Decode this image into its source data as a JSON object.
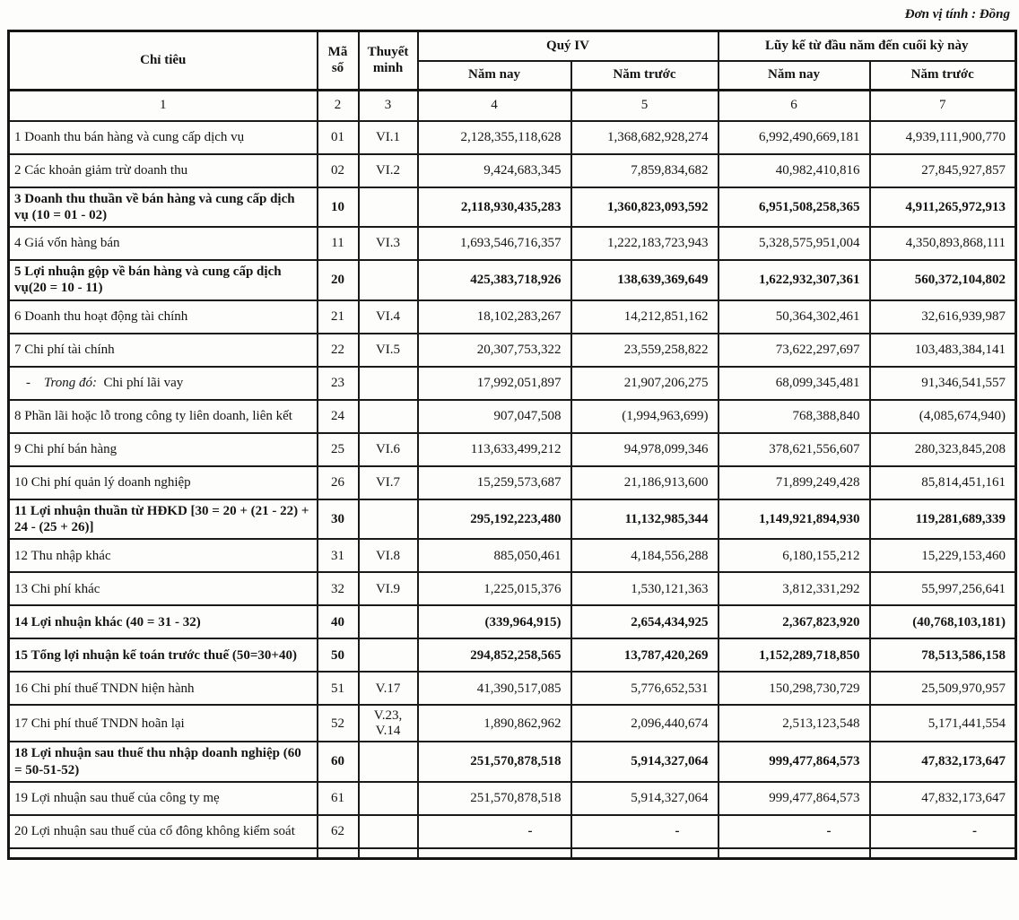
{
  "unit_label": "Đơn vị tính : Đồng",
  "table": {
    "header": {
      "criteria": "Chỉ tiêu",
      "code": "Mã số",
      "note": "Thuyết minh",
      "quarter_group": "Quý IV",
      "cumulative_group": "Lũy kế từ đầu năm đến cuối kỳ này",
      "current_year": "Năm nay",
      "prior_year": "Năm trước",
      "column_numbers": [
        "1",
        "2",
        "3",
        "4",
        "5",
        "6",
        "7"
      ]
    },
    "rows": [
      {
        "label": "1   Doanh thu bán hàng và cung cấp dịch vụ",
        "code": "01",
        "note": "VI.1",
        "q4_now": "2,128,355,118,628",
        "q4_prev": "1,368,682,928,274",
        "cum_now": "6,992,490,669,181",
        "cum_prev": "4,939,111,900,770",
        "bold": false
      },
      {
        "label": "2   Các khoản giảm trừ  doanh thu",
        "code": "02",
        "note": "VI.2",
        "q4_now": "9,424,683,345",
        "q4_prev": "7,859,834,682",
        "cum_now": "40,982,410,816",
        "cum_prev": "27,845,927,857",
        "bold": false
      },
      {
        "label": "3   Doanh thu thuần về bán hàng và cung cấp dịch vụ (10 = 01 - 02)",
        "code": "10",
        "note": "",
        "q4_now": "2,118,930,435,283",
        "q4_prev": "1,360,823,093,592",
        "cum_now": "6,951,508,258,365",
        "cum_prev": "4,911,265,972,913",
        "bold": true
      },
      {
        "label": "4   Giá vốn hàng bán",
        "code": "11",
        "note": "VI.3",
        "q4_now": "1,693,546,716,357",
        "q4_prev": "1,222,183,723,943",
        "cum_now": "5,328,575,951,004",
        "cum_prev": "4,350,893,868,111",
        "bold": false
      },
      {
        "label": "5   Lợi nhuận gộp về bán hàng và cung cấp dịch vụ(20 = 10 - 11)",
        "code": "20",
        "note": "",
        "q4_now": "425,383,718,926",
        "q4_prev": "138,639,369,649",
        "cum_now": "1,622,932,307,361",
        "cum_prev": "560,372,104,802",
        "bold": true
      },
      {
        "label": "6   Doanh thu hoạt động tài chính",
        "code": "21",
        "note": "VI.4",
        "q4_now": "18,102,283,267",
        "q4_prev": "14,212,851,162",
        "cum_now": "50,364,302,461",
        "cum_prev": "32,616,939,987",
        "bold": false
      },
      {
        "label": "7   Chi phí tài chính",
        "code": "22",
        "note": "VI.5",
        "q4_now": "20,307,753,322",
        "q4_prev": "23,559,258,822",
        "cum_now": "73,622,297,697",
        "cum_prev": "103,483,384,141",
        "bold": false
      },
      {
        "label_prefix": "-",
        "label_em": "Trong đó:",
        "label": "Chi phí lãi vay",
        "indent": true,
        "code": "23",
        "note": "",
        "q4_now": "17,992,051,897",
        "q4_prev": "21,907,206,275",
        "cum_now": "68,099,345,481",
        "cum_prev": "91,346,541,557",
        "bold": false
      },
      {
        "label": "8   Phần lãi hoặc lỗ trong công ty liên doanh, liên kết",
        "code": "24",
        "note": "",
        "q4_now": "907,047,508",
        "q4_prev": "(1,994,963,699)",
        "cum_now": "768,388,840",
        "cum_prev": "(4,085,674,940)",
        "bold": false
      },
      {
        "label": "9   Chi phí bán hàng",
        "code": "25",
        "note": "VI.6",
        "q4_now": "113,633,499,212",
        "q4_prev": "94,978,099,346",
        "cum_now": "378,621,556,607",
        "cum_prev": "280,323,845,208",
        "bold": false
      },
      {
        "label": "10 Chi phí quản lý doanh nghiệp",
        "code": "26",
        "note": "VI.7",
        "q4_now": "15,259,573,687",
        "q4_prev": "21,186,913,600",
        "cum_now": "71,899,249,428",
        "cum_prev": "85,814,451,161",
        "bold": false
      },
      {
        "label": "11 Lợi nhuận thuần từ HĐKD [30 = 20 + (21 - 22) + 24 - (25 + 26)]",
        "code": "30",
        "note": "",
        "q4_now": "295,192,223,480",
        "q4_prev": "11,132,985,344",
        "cum_now": "1,149,921,894,930",
        "cum_prev": "119,281,689,339",
        "bold": true
      },
      {
        "label": "12 Thu nhập khác",
        "code": "31",
        "note": "VI.8",
        "q4_now": "885,050,461",
        "q4_prev": "4,184,556,288",
        "cum_now": "6,180,155,212",
        "cum_prev": "15,229,153,460",
        "bold": false
      },
      {
        "label": "13 Chi phí khác",
        "code": "32",
        "note": "VI.9",
        "q4_now": "1,225,015,376",
        "q4_prev": "1,530,121,363",
        "cum_now": "3,812,331,292",
        "cum_prev": "55,997,256,641",
        "bold": false
      },
      {
        "label": "14 Lợi nhuận khác (40 = 31 - 32)",
        "code": "40",
        "note": "",
        "q4_now": "(339,964,915)",
        "q4_prev": "2,654,434,925",
        "cum_now": "2,367,823,920",
        "cum_prev": "(40,768,103,181)",
        "bold": true
      },
      {
        "label": "15 Tổng lợi nhuận kế toán trước thuế (50=30+40)",
        "code": "50",
        "note": "",
        "q4_now": "294,852,258,565",
        "q4_prev": "13,787,420,269",
        "cum_now": "1,152,289,718,850",
        "cum_prev": "78,513,586,158",
        "bold": true
      },
      {
        "label": "16 Chi phí thuế TNDN hiện hành",
        "code": "51",
        "note": "V.17",
        "q4_now": "41,390,517,085",
        "q4_prev": "5,776,652,531",
        "cum_now": "150,298,730,729",
        "cum_prev": "25,509,970,957",
        "bold": false
      },
      {
        "label": "17 Chi phí thuế TNDN hoãn lại",
        "code": "52",
        "note": "V.23,\nV.14",
        "q4_now": "1,890,862,962",
        "q4_prev": "2,096,440,674",
        "cum_now": "2,513,123,548",
        "cum_prev": "5,171,441,554",
        "bold": false
      },
      {
        "label": "18 Lợi nhuận sau thuế thu nhập doanh nghiệp (60 = 50-51-52)",
        "code": "60",
        "note": "",
        "q4_now": "251,570,878,518",
        "q4_prev": "5,914,327,064",
        "cum_now": "999,477,864,573",
        "cum_prev": "47,832,173,647",
        "bold": true
      },
      {
        "label": "19 Lợi nhuận sau thuế của công ty mẹ",
        "code": "61",
        "note": "",
        "q4_now": "251,570,878,518",
        "q4_prev": "5,914,327,064",
        "cum_now": "999,477,864,573",
        "cum_prev": "47,832,173,647",
        "bold": false
      },
      {
        "label": "20 Lợi nhuận sau thuế của cổ đông không kiểm soát",
        "code": "62",
        "note": "",
        "q4_now": "-",
        "q4_prev": "-",
        "cum_now": "-",
        "cum_prev": "-",
        "bold": false,
        "values_bold": true
      },
      {
        "label": "",
        "code": "",
        "note": "",
        "q4_now": "",
        "q4_prev": "",
        "cum_now": "",
        "cum_prev": "",
        "bold": false,
        "partial": true
      }
    ]
  }
}
